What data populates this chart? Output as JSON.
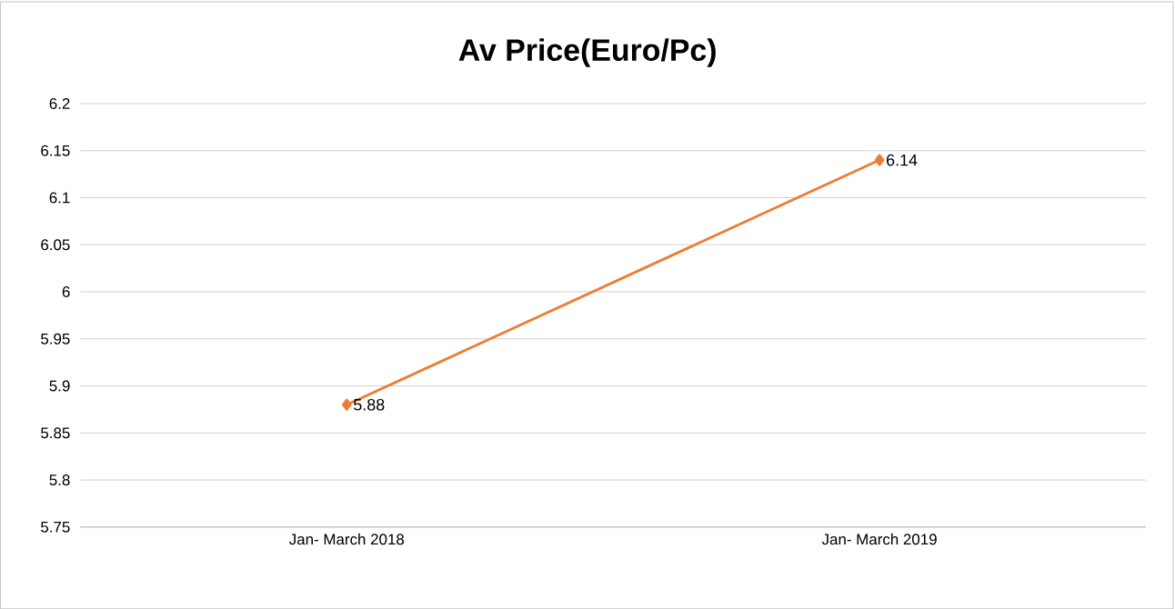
{
  "chart_data": {
    "type": "line",
    "title": "Av Price(Euro/Pc)",
    "categories": [
      "Jan- March 2018",
      "Jan- March 2019"
    ],
    "values": [
      5.88,
      6.14
    ],
    "color": "#ed7d31",
    "ylim": [
      5.75,
      6.2
    ],
    "yticks": [
      5.75,
      5.8,
      5.85,
      5.9,
      5.95,
      6,
      6.05,
      6.1,
      6.15,
      6.2
    ],
    "grid": "y",
    "marker": "diamond",
    "line_style": "solid",
    "data_labels": true
  }
}
